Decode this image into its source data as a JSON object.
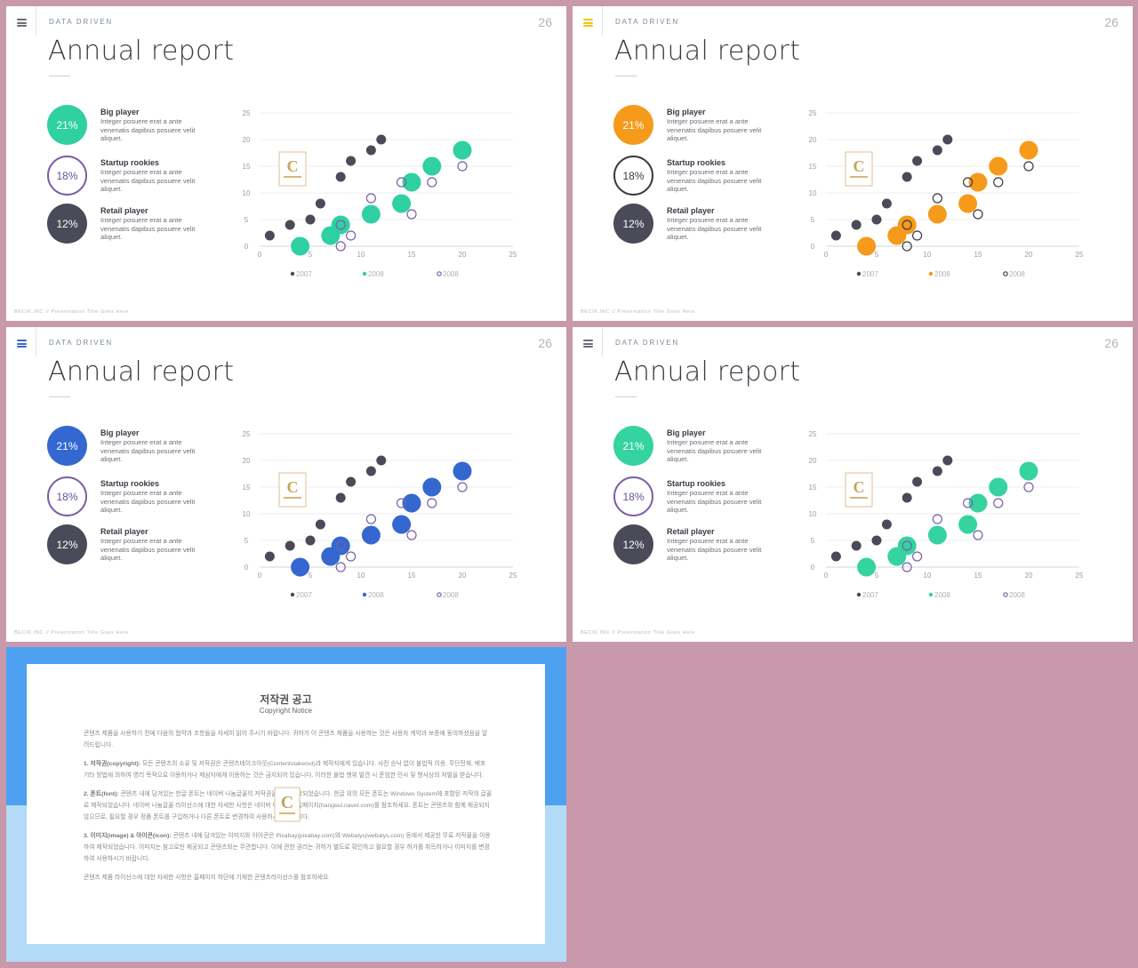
{
  "slides": [
    {
      "eyebrow": "DATA DRIVEN",
      "page": "26",
      "title": "Annual report",
      "accent": "#2fd0a2",
      "menu_color": "#6c6c78",
      "outline_color": "#7b5ea7",
      "stats": [
        {
          "value": "21%",
          "title": "Big player",
          "desc": "Integer posuere erat a ante venenatis dapibus posuere velit aliquet."
        },
        {
          "value": "18%",
          "title": "Startup rookies",
          "desc": "Integer posuere erat a ante venenatis dapibus posuere velit aliquet."
        },
        {
          "value": "12%",
          "title": "Retail player",
          "desc": "Integer posuere erat a ante venenatis dapibus posuere velit aliquet."
        }
      ],
      "footer": "BECIK.INC  //  Presentation  Title  Goes  Here"
    },
    {
      "eyebrow": "DATA DRIVEN",
      "page": "26",
      "title": "Annual report",
      "accent": "#f59a1a",
      "menu_color": "#f2c318",
      "outline_color": "#3a3a44",
      "stats": [
        {
          "value": "21%",
          "title": "Big player",
          "desc": "Integer posuere erat a ante venenatis dapibus posuere velit aliquet."
        },
        {
          "value": "18%",
          "title": "Startup rookies",
          "desc": "Integer posuere erat a ante venenatis dapibus posuere velit aliquet."
        },
        {
          "value": "12%",
          "title": "Retail player",
          "desc": "Integer posuere erat a ante venenatis dapibus posuere velit aliquet."
        }
      ],
      "footer": "BECIK.INC  //  Presentation  Title  Goes  Here"
    },
    {
      "eyebrow": "DATA DRIVEN",
      "page": "26",
      "title": "Annual report",
      "accent": "#3468d0",
      "menu_color": "#3a6ad2",
      "outline_color": "#7b5ea7",
      "stats": [
        {
          "value": "21%",
          "title": "Big player",
          "desc": "Integer posuere erat a ante venenatis dapibus posuere velit aliquet."
        },
        {
          "value": "18%",
          "title": "Startup rookies",
          "desc": "Integer posuere erat a ante venenatis dapibus posuere velit aliquet."
        },
        {
          "value": "12%",
          "title": "Retail player",
          "desc": "Integer posuere erat a ante venenatis dapibus posuere velit aliquet."
        }
      ],
      "footer": "BECIK.INC  //  Presentation  Title  Goes  Here"
    },
    {
      "eyebrow": "DATA DRIVEN",
      "page": "26",
      "title": "Annual report",
      "accent": "#34d3a0",
      "menu_color": "#6c6c78",
      "outline_color": "#7b5ea7",
      "stats": [
        {
          "value": "21%",
          "title": "Big player",
          "desc": "Integer posuere erat a ante venenatis dapibus posuere velit aliquet."
        },
        {
          "value": "18%",
          "title": "Startup rookies",
          "desc": "Integer posuere erat a ante venenatis dapibus posuere velit aliquet."
        },
        {
          "value": "12%",
          "title": "Retail player",
          "desc": "Integer posuere erat a ante venenatis dapibus posuere velit aliquet."
        }
      ],
      "footer": "BECIK.INC  //  Presentation  Title  Goes  Here"
    }
  ],
  "chart_data": {
    "type": "scatter",
    "xlim": [
      0,
      25
    ],
    "ylim": [
      0,
      25
    ],
    "xticks": [
      0,
      5,
      10,
      15,
      20,
      25
    ],
    "yticks": [
      0,
      5,
      10,
      15,
      20,
      25
    ],
    "grid": true,
    "legend_position": "bottom",
    "series": [
      {
        "name": "2007",
        "style": "small-dark",
        "color": "#4a4a58",
        "points": [
          [
            1,
            2
          ],
          [
            3,
            4
          ],
          [
            5,
            5
          ],
          [
            6,
            8
          ],
          [
            8,
            13
          ],
          [
            9,
            16
          ],
          [
            11,
            18
          ],
          [
            12,
            20
          ]
        ]
      },
      {
        "name": "2008",
        "style": "large-accent",
        "points": [
          [
            4,
            0
          ],
          [
            7,
            2
          ],
          [
            8,
            4
          ],
          [
            11,
            6
          ],
          [
            14,
            8
          ],
          [
            15,
            12
          ],
          [
            17,
            15
          ],
          [
            20,
            18
          ]
        ]
      },
      {
        "name": "2008",
        "style": "hollow",
        "points": [
          [
            8,
            0
          ],
          [
            9,
            2
          ],
          [
            11,
            9
          ],
          [
            14,
            12
          ],
          [
            15,
            6
          ],
          [
            17,
            12
          ],
          [
            20,
            15
          ],
          [
            8,
            4
          ]
        ]
      }
    ]
  },
  "copyright": {
    "title": "저작권 공고",
    "subtitle": "Copyright Notice",
    "intro": "콘텐츠 제품을 사용하기 전에 다음의 협약과 조항들을 자세히 읽어 주시기 바랍니다. 귀하가 이 콘텐츠 제품을 사용하는 것은 사용자 계약과 보증에 동의하셨음을 알려드립니다.",
    "p1_head": "1. 저작권(copyright):",
    "p1": "모든 콘텐츠의 소유 및 저작권은 콘텐츠테이크아웃(Contentstakeout)과 제작자에게 있습니다. 사전 승낙 없이 불법적 이용, 무단전재, 배포 기타 방법에 의하여 영리 목적으로 이용하거나 제삼자에게 이용하는 것은 금지되어 있습니다. 이러한 불법 행위 발견 시 준엄한 민사 및 형사상의 처벌을 받습니다.",
    "p2_head": "2. 폰트(font):",
    "p2": "콘텐츠 내에 담겨있는 한글 폰트는 네이버 나눔글꼴의 저작권을 따라 제작되었습니다. 한글 외의 모든 폰트는 Windows System에 포함된 저작의 글꼴로 제작되었습니다. 네이버 나눔글꼴 라이선스에 대한 자세한 사항은 네이버 나눔글꼴 홈페이지(hangeul.naver.com)를 참조하세요. 폰트는 콘텐츠와 함께 제공되지 않으므로, 필요할 경우 정품 폰트를 구입하거나 다른 폰트로 변경하여 사용하시기 바랍니다.",
    "p3_head": "3. 이미지(image) & 아이콘(icon):",
    "p3": "콘텐츠 내에 담겨있는 이미지와 아이콘은 Pixabay(pixabay.com)와 Webalys(webalys.com) 등에서 제공한 무료 저작물을 이용하여 제작되었습니다. 이미지는 참고로만 제공되고 콘텐츠와는 무관합니다. 이에 관한 권리는 귀하가 별도로 확인하고 필요할 경우 허가를 취득하거나 이미지를 변경하여 사용하시기 바랍니다.",
    "closing": "콘텐츠 제품 라이선스에 대한 자세한 사항은 홈페이지 하단에 기재한 콘텐츠라이선스를 참조하세요."
  }
}
